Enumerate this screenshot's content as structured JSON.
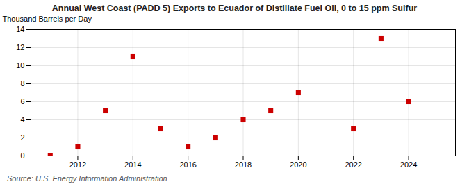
{
  "chart_data": {
    "type": "scatter",
    "title": "Annual West Coast (PADD 5) Exports to Ecuador of Distillate Fuel Oil, 0 to 15 ppm Sulfur",
    "ylabel": "Thousand Barrels per Day",
    "annotation": "Source: U.S. Energy Information Administration",
    "x": [
      2011,
      2012,
      2013,
      2014,
      2015,
      2016,
      2017,
      2018,
      2019,
      2020,
      2022,
      2023,
      2024
    ],
    "values": [
      0,
      1,
      5,
      11,
      3,
      1,
      2,
      4,
      5,
      7,
      3,
      13,
      6
    ],
    "color": "#cc0000",
    "marker": "square",
    "xlim": [
      2010.3,
      2025.7
    ],
    "ylim": [
      0,
      14
    ],
    "xticks": [
      2012,
      2014,
      2016,
      2018,
      2020,
      2022,
      2024
    ],
    "yticks": [
      0,
      2,
      4,
      6,
      8,
      10,
      12,
      14
    ],
    "grid": true
  }
}
